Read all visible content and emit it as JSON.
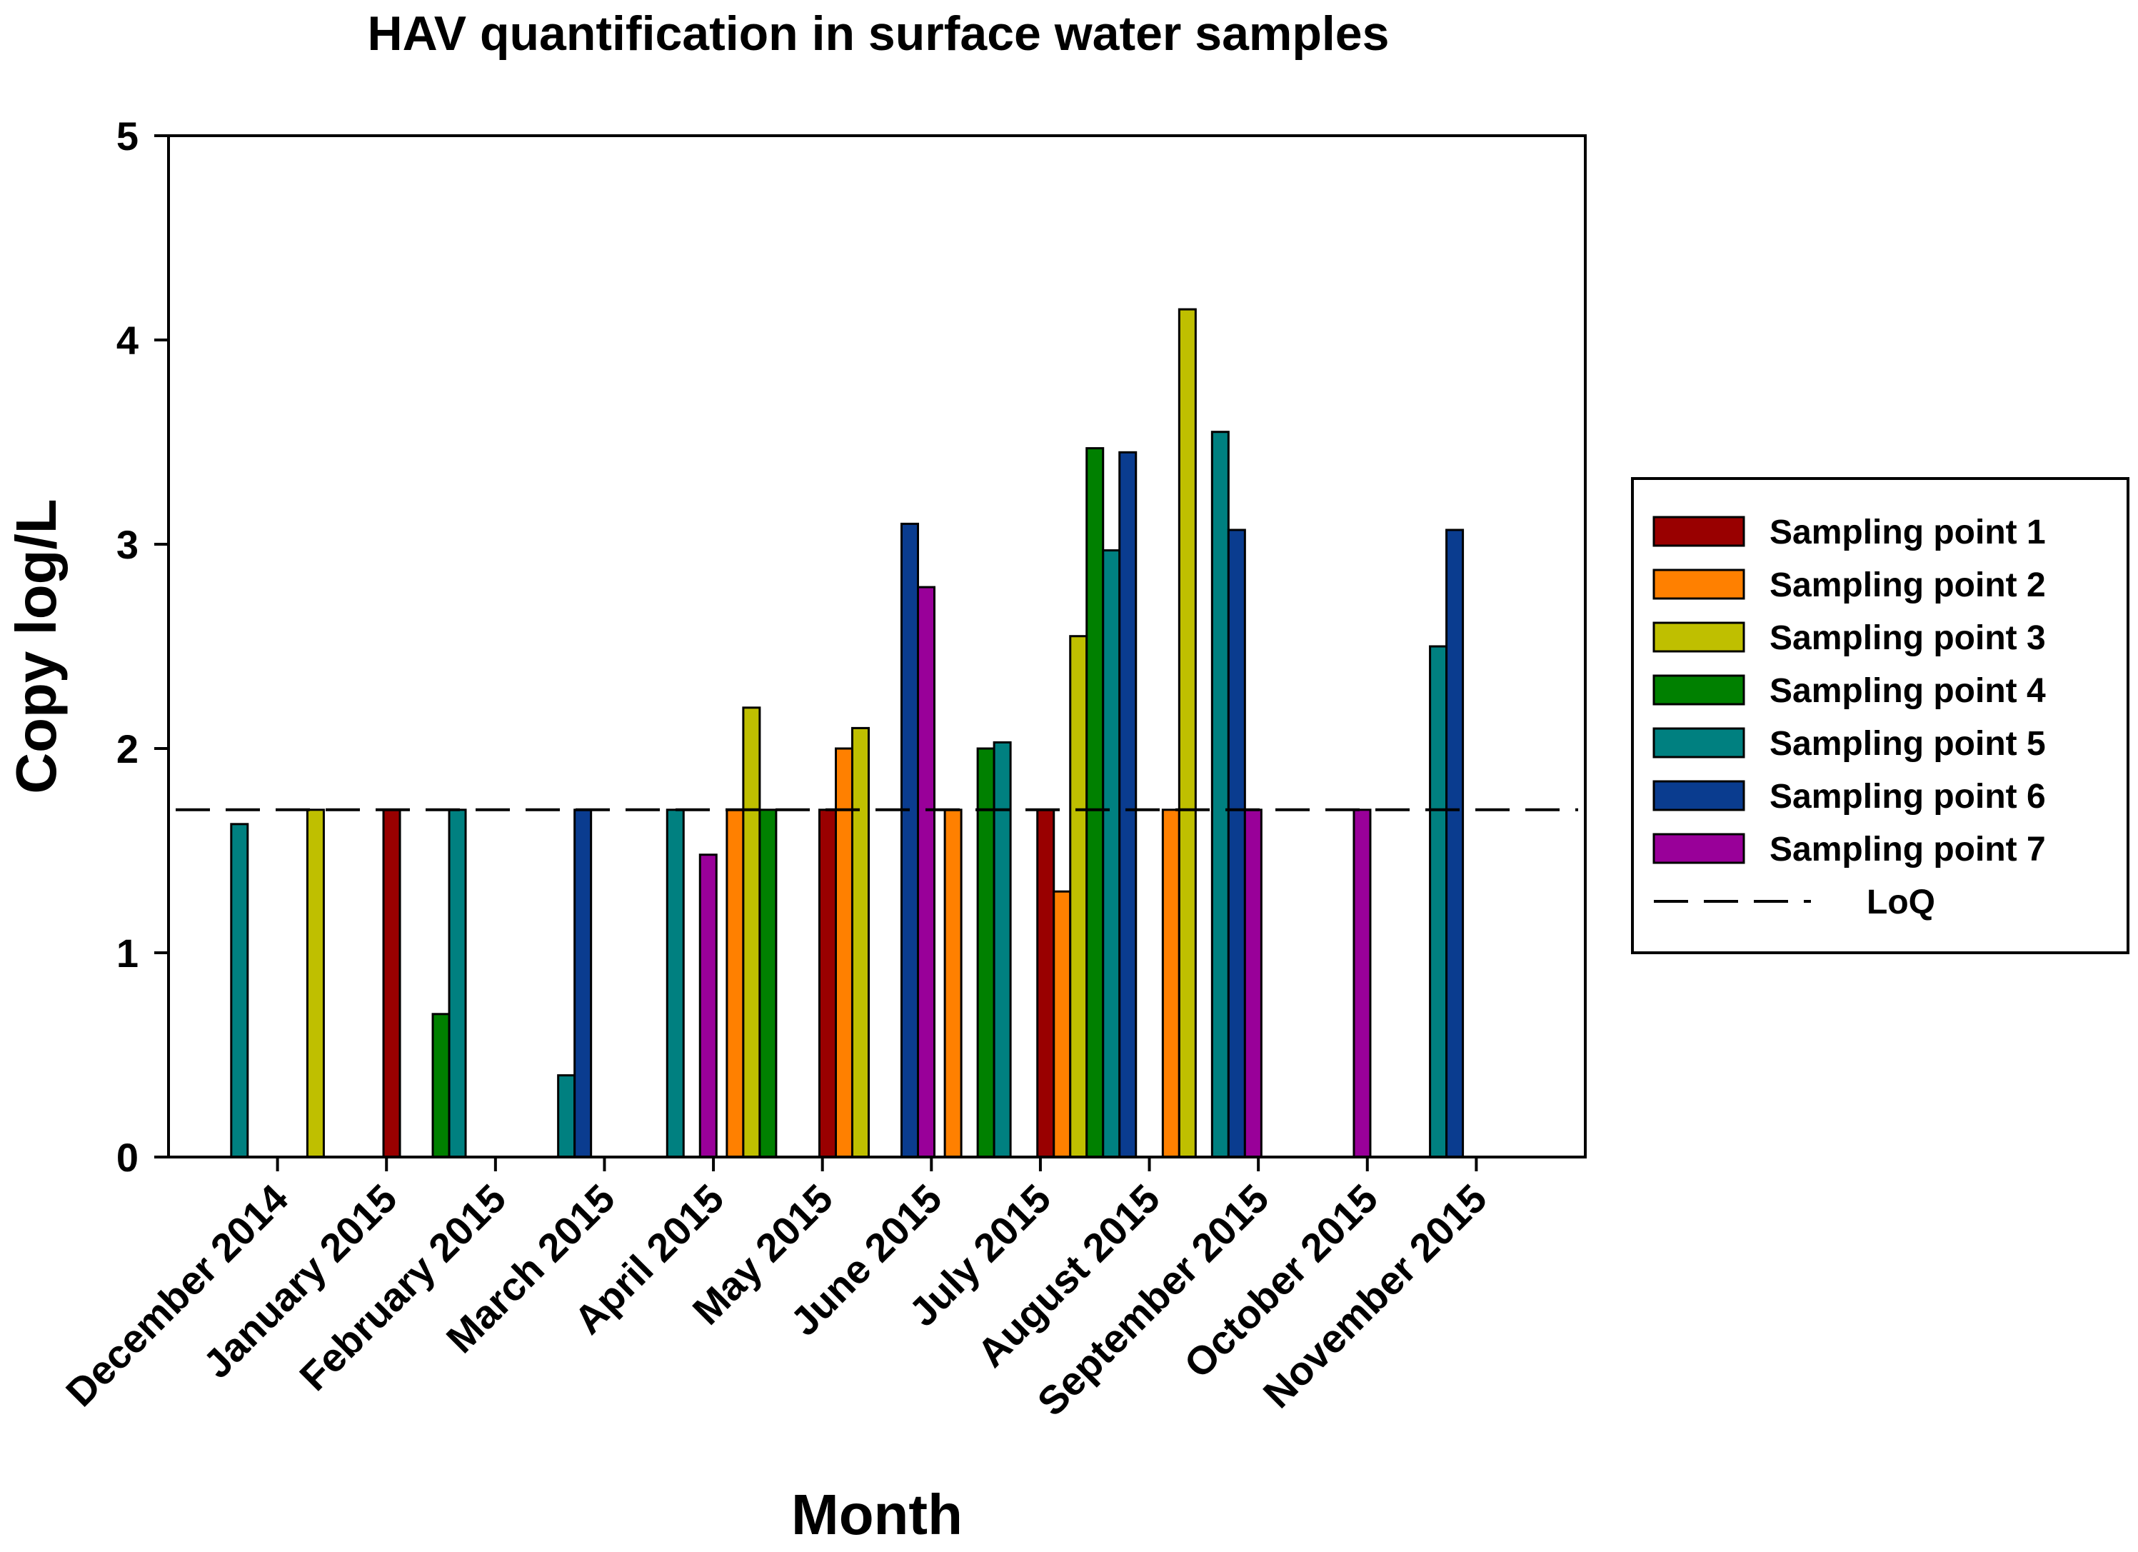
{
  "chart_data": {
    "type": "bar",
    "title": "HAV quantification in surface water samples",
    "xlabel": "Month",
    "ylabel": "Copy log/L",
    "ylim": [
      0,
      5
    ],
    "yticks": [
      "0",
      "1",
      "2",
      "3",
      "4",
      "5"
    ],
    "categories": [
      "December 2014",
      "January 2015",
      "February 2015",
      "March 2015",
      "April 2015",
      "May 2015",
      "June 2015",
      "July 2015",
      "August 2015",
      "September 2015",
      "October 2015",
      "November 2015",
      ""
    ],
    "legend_position": "right",
    "loq": {
      "name": "LoQ",
      "value": 1.7
    },
    "series": [
      {
        "name": "Sampling point 1",
        "color": "#990000",
        "values": [
          null,
          null,
          1.7,
          null,
          null,
          null,
          1.7,
          null,
          1.7,
          null,
          null,
          null,
          null
        ]
      },
      {
        "name": "Sampling point 2",
        "color": "#FF8000",
        "values": [
          null,
          null,
          null,
          null,
          null,
          1.7,
          2.0,
          1.7,
          1.3,
          1.7,
          null,
          null,
          null
        ]
      },
      {
        "name": "Sampling point 3",
        "color": "#BFBF00",
        "values": [
          null,
          1.7,
          null,
          null,
          null,
          2.2,
          2.1,
          null,
          2.55,
          4.15,
          null,
          null,
          null
        ]
      },
      {
        "name": "Sampling point 4",
        "color": "#008000",
        "values": [
          null,
          null,
          0.7,
          null,
          null,
          1.7,
          null,
          2.0,
          3.47,
          null,
          null,
          null,
          null
        ]
      },
      {
        "name": "Sampling point 5",
        "color": "#008080",
        "values": [
          1.63,
          null,
          1.7,
          0.4,
          1.7,
          null,
          null,
          2.03,
          2.97,
          3.55,
          null,
          2.5,
          null
        ]
      },
      {
        "name": "Sampling point 6",
        "color": "#0A3C8F",
        "values": [
          null,
          null,
          null,
          1.7,
          null,
          null,
          3.1,
          null,
          3.45,
          3.07,
          null,
          3.07,
          null
        ]
      },
      {
        "name": "Sampling point 7",
        "color": "#990099",
        "values": [
          null,
          null,
          null,
          null,
          1.48,
          null,
          2.79,
          null,
          null,
          1.7,
          1.7,
          null,
          null
        ]
      }
    ]
  }
}
